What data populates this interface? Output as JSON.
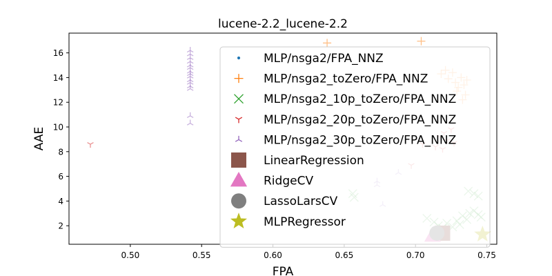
{
  "chart_data": {
    "type": "scatter",
    "title": "lucene-2.2_lucene-2.2",
    "xlabel": "FPA",
    "ylabel": "AAE",
    "xlim": [
      0.457,
      0.757
    ],
    "ylim": [
      0.5,
      17.6
    ],
    "xticks": [
      0.5,
      0.55,
      0.6,
      0.65,
      0.7,
      0.75
    ],
    "xtick_labels": [
      "0.50",
      "0.55",
      "0.60",
      "0.65",
      "0.70",
      "0.75"
    ],
    "yticks": [
      2,
      4,
      6,
      8,
      10,
      12,
      14,
      16
    ],
    "ytick_labels": [
      "2",
      "4",
      "6",
      "8",
      "10",
      "12",
      "14",
      "16"
    ],
    "grid": false,
    "legend_position": "upper right",
    "series": [
      {
        "name": "MLP/nsga2/FPA_NNZ",
        "marker": "dot",
        "color": "#1f77b4",
        "points": []
      },
      {
        "name": "MLP/nsga2_toZero/FPA_NNZ",
        "marker": "plus",
        "color": "#ff7f0e",
        "points": [
          [
            0.638,
            16.8
          ],
          [
            0.704,
            16.95
          ],
          [
            0.718,
            14.3
          ],
          [
            0.721,
            14.6
          ],
          [
            0.723,
            13.9
          ],
          [
            0.726,
            14.4
          ],
          [
            0.728,
            13.6
          ],
          [
            0.73,
            13.2
          ],
          [
            0.732,
            14.0
          ],
          [
            0.734,
            13.4
          ],
          [
            0.729,
            12.9
          ],
          [
            0.735,
            12.6
          ],
          [
            0.736,
            13.8
          ],
          [
            0.733,
            12.2
          ]
        ]
      },
      {
        "name": "MLP/nsga2_10p_toZero/FPA_NNZ",
        "marker": "x",
        "color": "#2ca02c",
        "points": [
          [
            0.656,
            4.6
          ],
          [
            0.657,
            4.3
          ],
          [
            0.708,
            2.6
          ],
          [
            0.713,
            2.3
          ],
          [
            0.716,
            2.0
          ],
          [
            0.719,
            1.8
          ],
          [
            0.722,
            2.2
          ],
          [
            0.726,
            1.9
          ],
          [
            0.729,
            2.4
          ],
          [
            0.733,
            2.8
          ],
          [
            0.736,
            2.5
          ],
          [
            0.738,
            3.0
          ],
          [
            0.741,
            3.2
          ],
          [
            0.744,
            2.9
          ],
          [
            0.746,
            2.7
          ],
          [
            0.737,
            4.8
          ],
          [
            0.741,
            4.6
          ],
          [
            0.744,
            4.4
          ],
          [
            0.731,
            2.1
          ]
        ]
      },
      {
        "name": "MLP/nsga2_20p_toZero/FPA_NNZ",
        "marker": "tri_down",
        "color": "#d62728",
        "points": [
          [
            0.472,
            8.6
          ],
          [
            0.697,
            6.9
          ],
          [
            0.705,
            8.6
          ],
          [
            0.714,
            8.4
          ],
          [
            0.717,
            9.2
          ],
          [
            0.72,
            9.5
          ],
          [
            0.722,
            8.9
          ],
          [
            0.725,
            9.8
          ],
          [
            0.719,
            8.2
          ],
          [
            0.727,
            8.7
          ]
        ]
      },
      {
        "name": "MLP/nsga2_30p_toZero/FPA_NNZ",
        "marker": "tri_up",
        "color": "#9467bd",
        "points": [
          [
            0.542,
            16.2
          ],
          [
            0.542,
            15.9
          ],
          [
            0.542,
            15.6
          ],
          [
            0.542,
            15.3
          ],
          [
            0.542,
            15.0
          ],
          [
            0.542,
            14.8
          ],
          [
            0.542,
            14.5
          ],
          [
            0.542,
            14.3
          ],
          [
            0.542,
            14.1
          ],
          [
            0.542,
            13.8
          ],
          [
            0.542,
            13.6
          ],
          [
            0.542,
            13.3
          ],
          [
            0.542,
            13.1
          ],
          [
            0.542,
            10.9
          ],
          [
            0.542,
            10.3
          ],
          [
            0.673,
            5.6
          ],
          [
            0.673,
            5.3
          ],
          [
            0.677,
            3.7
          ],
          [
            0.688,
            6.3
          ]
        ]
      },
      {
        "name": "LinearRegression",
        "marker": "square",
        "color": "#8c564b",
        "points": [
          [
            0.719,
            1.4
          ]
        ]
      },
      {
        "name": "RidgeCV",
        "marker": "triangle",
        "color": "#e377c2",
        "points": [
          [
            0.712,
            1.2
          ]
        ]
      },
      {
        "name": "LassoLarsCV",
        "marker": "circle",
        "color": "#7f7f7f",
        "points": [
          [
            0.715,
            1.4
          ]
        ]
      },
      {
        "name": "MLPRegressor",
        "marker": "star",
        "color": "#bcbd22",
        "points": [
          [
            0.747,
            1.3
          ]
        ]
      }
    ]
  }
}
